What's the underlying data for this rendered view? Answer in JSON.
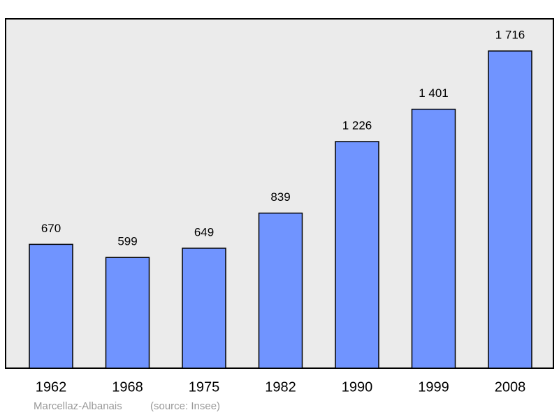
{
  "chart_data": {
    "type": "bar",
    "categories": [
      "1962",
      "1968",
      "1975",
      "1982",
      "1990",
      "1999",
      "2008"
    ],
    "values": [
      670,
      599,
      649,
      839,
      1226,
      1401,
      1716
    ],
    "value_labels": [
      "670",
      "599",
      "649",
      "839",
      "1 226",
      "1 401",
      "1 716"
    ],
    "color": "#7094ff",
    "ylim": [
      0,
      1890
    ],
    "caption": "Marcellaz-Albanais",
    "source": "(source: Insee)"
  }
}
